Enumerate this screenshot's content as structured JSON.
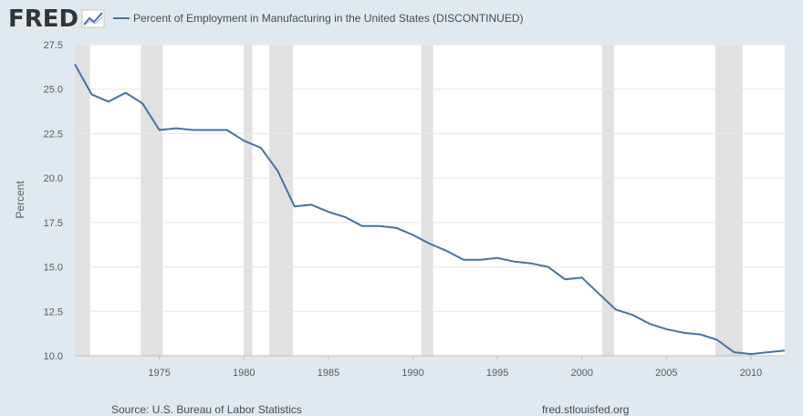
{
  "header": {
    "logo_text": "FRED",
    "logo_icon": "line-chart-icon"
  },
  "legend": {
    "series_name": "Percent of Employment in Manufacturing in the United States (DISCONTINUED)"
  },
  "footer": {
    "source": "Source: U.S. Bureau of Labor Statistics",
    "site": "fred.stlouisfed.org"
  },
  "colors": {
    "page_bg": "#e1e9f0",
    "plot_bg": "#ffffff",
    "series_line": "#4572a7",
    "recession_band": "#e1e1e1",
    "gridline": "#e6e6e6"
  },
  "chart_data": {
    "type": "line",
    "title": "",
    "xlabel": "",
    "ylabel": "Percent",
    "xlim": [
      1970,
      2012
    ],
    "ylim": [
      10.0,
      27.5
    ],
    "y_ticks": [
      "10.0",
      "12.5",
      "15.0",
      "17.5",
      "20.0",
      "22.5",
      "25.0",
      "27.5"
    ],
    "x_ticks": [
      "1975",
      "1980",
      "1985",
      "1990",
      "1995",
      "2000",
      "2005",
      "2010"
    ],
    "grid": true,
    "legend_position": "top",
    "recessions": [
      [
        1970.0,
        1970.9
      ],
      [
        1973.9,
        1975.2
      ],
      [
        1980.0,
        1980.5
      ],
      [
        1981.5,
        1982.9
      ],
      [
        1990.5,
        1991.2
      ],
      [
        2001.2,
        2001.9
      ],
      [
        2007.9,
        2009.5
      ]
    ],
    "series": [
      {
        "name": "Percent of Employment in Manufacturing in the United States (DISCONTINUED)",
        "x": [
          1970,
          1971,
          1972,
          1973,
          1974,
          1975,
          1976,
          1977,
          1978,
          1979,
          1980,
          1981,
          1982,
          1983,
          1984,
          1985,
          1986,
          1987,
          1988,
          1989,
          1990,
          1991,
          1992,
          1993,
          1994,
          1995,
          1996,
          1997,
          1998,
          1999,
          2000,
          2001,
          2002,
          2003,
          2004,
          2005,
          2006,
          2007,
          2008,
          2009,
          2010,
          2011,
          2012
        ],
        "values": [
          26.4,
          24.7,
          24.3,
          24.8,
          24.2,
          22.7,
          22.8,
          22.7,
          22.7,
          22.7,
          22.1,
          21.7,
          20.4,
          18.4,
          18.5,
          18.1,
          17.8,
          17.3,
          17.3,
          17.2,
          16.8,
          16.3,
          15.9,
          15.4,
          15.4,
          15.5,
          15.3,
          15.2,
          15.0,
          14.3,
          14.4,
          13.5,
          12.6,
          12.3,
          11.8,
          11.5,
          11.3,
          11.2,
          10.9,
          10.2,
          10.1,
          10.2,
          10.3
        ]
      }
    ]
  }
}
